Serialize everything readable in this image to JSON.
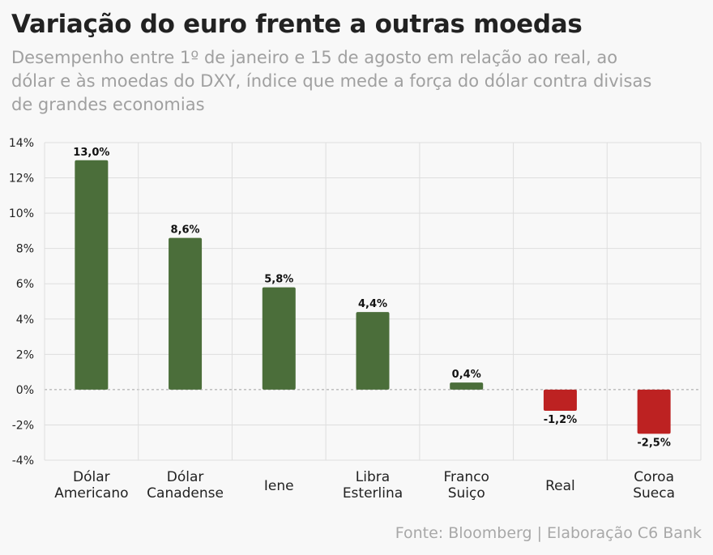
{
  "header": {
    "title": "Variação do euro frente a outras moedas",
    "subtitle": "Desempenho entre 1º de janeiro e 15 de agosto em relação ao real, ao dólar e às moedas do DXY, índice que mede a força do dólar contra divisas de grandes economias"
  },
  "footer": {
    "source": "Fonte: Bloomberg | Elaboração C6 Bank"
  },
  "chart_data": {
    "type": "bar",
    "categories": [
      [
        "Dólar",
        "Americano"
      ],
      [
        "Dólar",
        "Canadense"
      ],
      [
        "Iene"
      ],
      [
        "Libra",
        "Esterlina"
      ],
      [
        "Franco",
        "Suiço"
      ],
      [
        "Real"
      ],
      [
        "Coroa",
        "Sueca"
      ]
    ],
    "values": [
      13.0,
      8.6,
      5.8,
      4.4,
      0.4,
      -1.2,
      -2.5
    ],
    "data_labels": [
      "13,0%",
      "8,6%",
      "5,8%",
      "4,4%",
      "0,4%",
      "-1,2%",
      "-2,5%"
    ],
    "ylim": [
      -4,
      14
    ],
    "yticks": [
      -4,
      -2,
      0,
      2,
      4,
      6,
      8,
      10,
      12,
      14
    ],
    "ytick_labels": [
      "-4%",
      "-2%",
      "0%",
      "2%",
      "4%",
      "6%",
      "8%",
      "10%",
      "12%",
      "14%"
    ],
    "xlabel": "",
    "ylabel": "",
    "grid": true,
    "colors": {
      "positive": "#4b6e3a",
      "negative": "#bd2222",
      "grid": "#dedede",
      "zero_line": "#a0a0a0"
    }
  }
}
